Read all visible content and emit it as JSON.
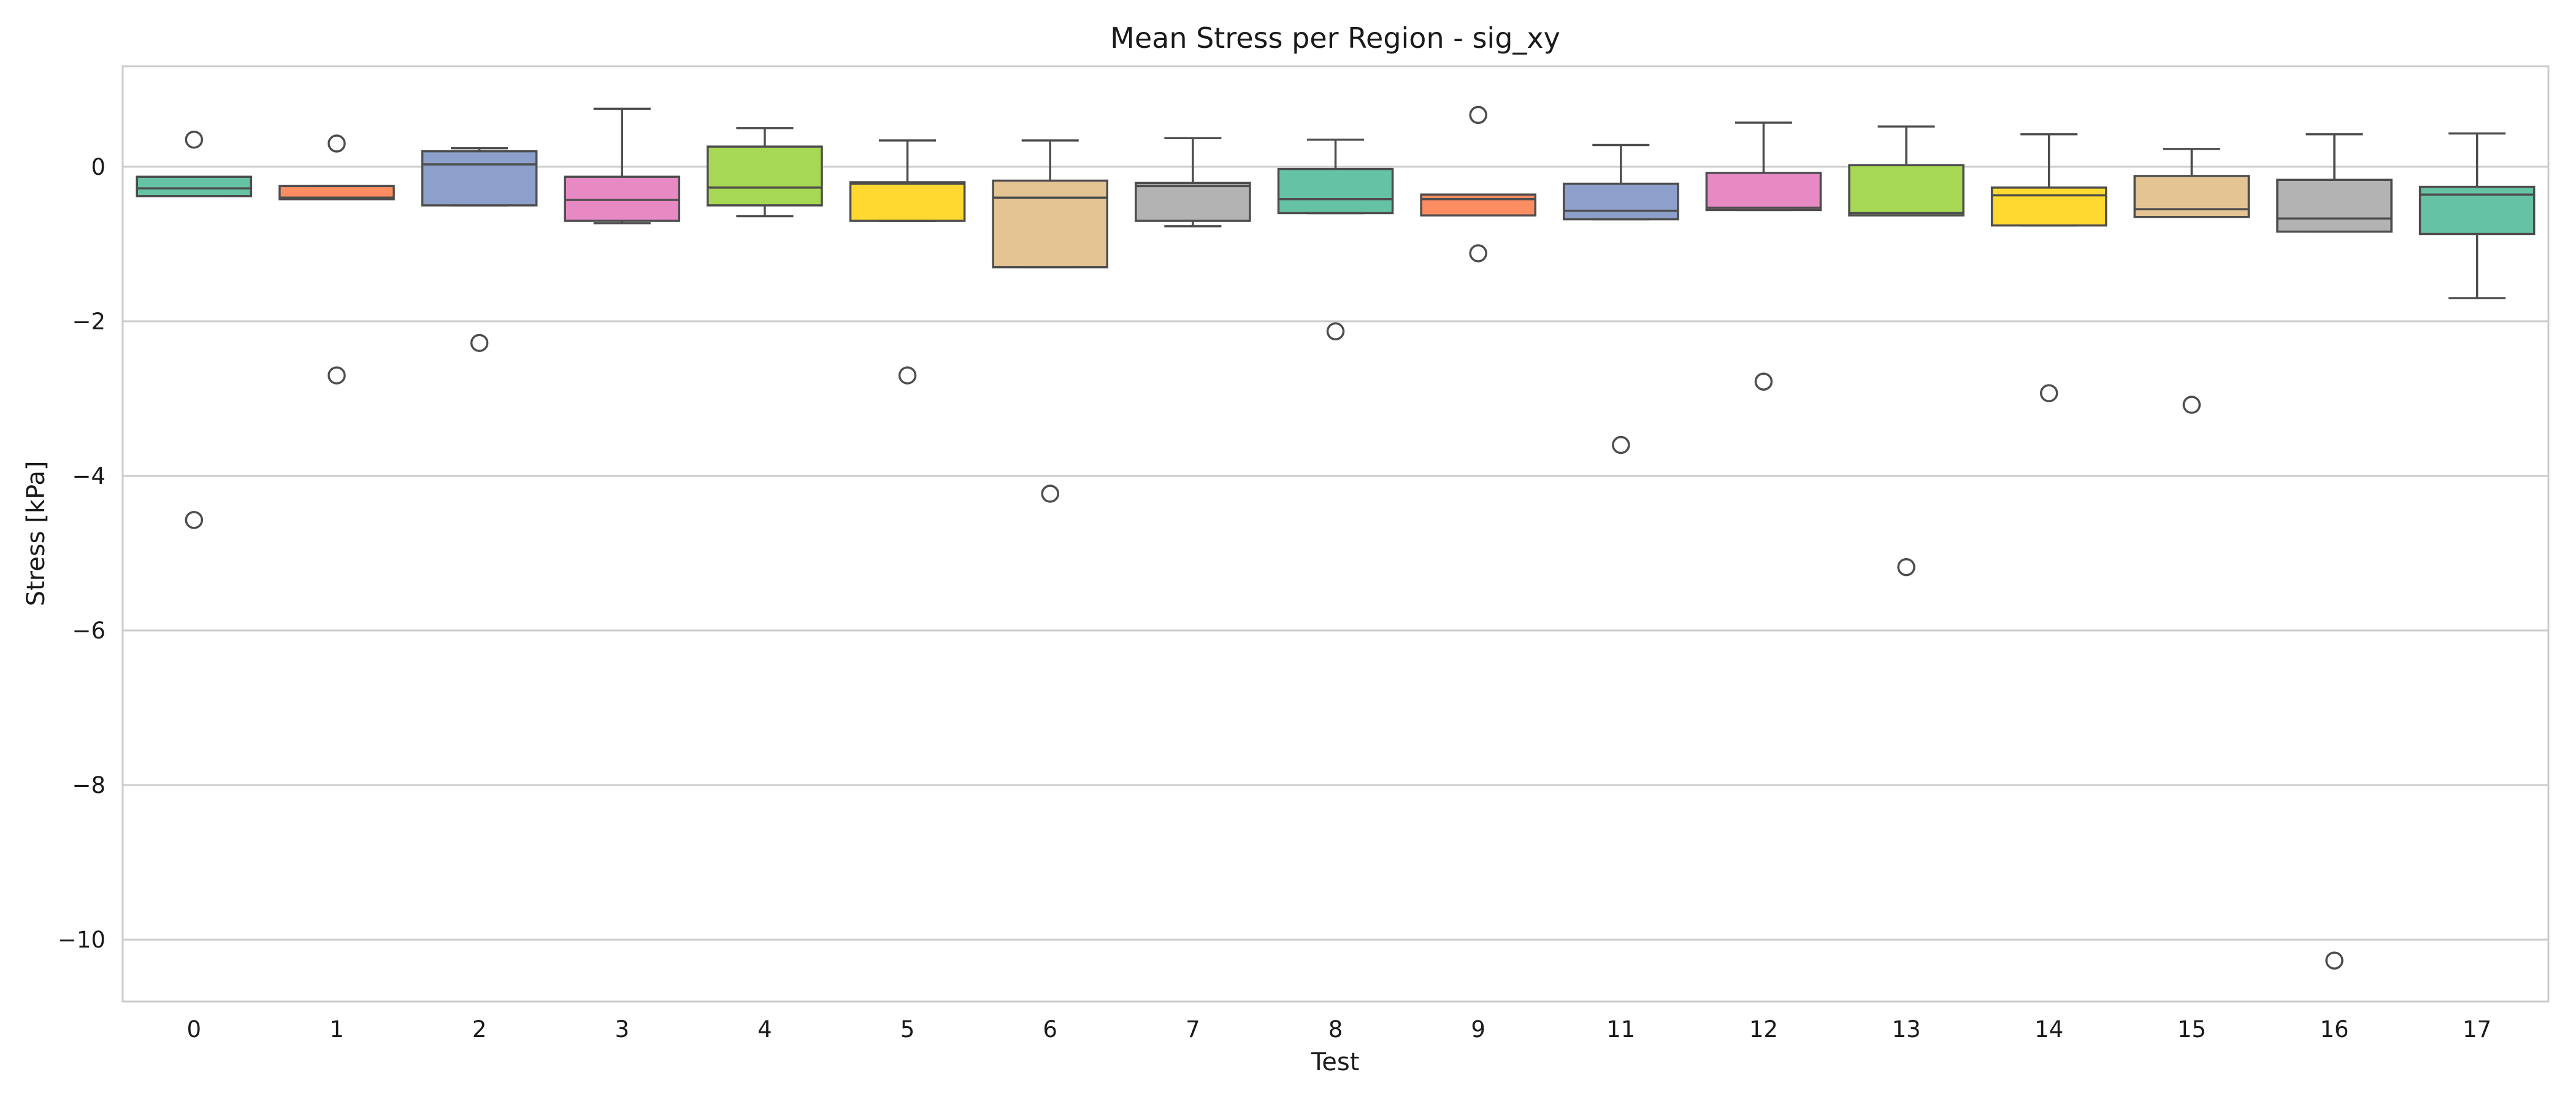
{
  "chart_data": {
    "type": "boxplot",
    "title": "Mean Stress per Region - sig_xy",
    "xlabel": "Test",
    "ylabel": "Stress [kPa]",
    "ylim": [
      -10.8,
      1.3
    ],
    "yticks": [
      0,
      -2,
      -4,
      -6,
      -8,
      -10
    ],
    "ytick_labels": [
      "0",
      "−2",
      "−4",
      "−6",
      "−8",
      "−10"
    ],
    "grid": "horizontal",
    "categories": [
      "0",
      "1",
      "2",
      "3",
      "4",
      "5",
      "6",
      "7",
      "8",
      "9",
      "11",
      "12",
      "13",
      "14",
      "15",
      "16",
      "17"
    ],
    "colors": [
      "#66c2a5",
      "#fc8d62",
      "#8da0cb",
      "#e78ac3",
      "#a6d854",
      "#ffd92f",
      "#e5c494",
      "#b3b3b3",
      "#66c2a5",
      "#fc8d62",
      "#8da0cb",
      "#e78ac3",
      "#a6d854",
      "#ffd92f",
      "#e5c494",
      "#b3b3b3",
      "#66c2a5"
    ],
    "boxes": [
      {
        "whislo": -0.38,
        "q1": -0.38,
        "med": -0.28,
        "q3": -0.13,
        "whishi": -0.13,
        "fliers": [
          0.35,
          -4.57
        ]
      },
      {
        "whislo": -0.42,
        "q1": -0.42,
        "med": -0.4,
        "q3": -0.25,
        "whishi": -0.25,
        "fliers": [
          0.3,
          -2.7
        ]
      },
      {
        "whislo": -0.5,
        "q1": -0.5,
        "med": 0.03,
        "q3": 0.2,
        "whishi": 0.24,
        "fliers": [
          -2.28
        ]
      },
      {
        "whislo": -0.73,
        "q1": -0.7,
        "med": -0.43,
        "q3": -0.13,
        "whishi": 0.75,
        "fliers": []
      },
      {
        "whislo": -0.64,
        "q1": -0.5,
        "med": -0.27,
        "q3": 0.26,
        "whishi": 0.5,
        "fliers": []
      },
      {
        "whislo": -0.7,
        "q1": -0.7,
        "med": -0.22,
        "q3": -0.2,
        "whishi": 0.34,
        "fliers": [
          -2.7
        ]
      },
      {
        "whislo": -1.3,
        "q1": -1.3,
        "med": -0.4,
        "q3": -0.18,
        "whishi": 0.34,
        "fliers": [
          -4.23
        ]
      },
      {
        "whislo": -0.77,
        "q1": -0.7,
        "med": -0.25,
        "q3": -0.21,
        "whishi": 0.37,
        "fliers": []
      },
      {
        "whislo": -0.6,
        "q1": -0.6,
        "med": -0.42,
        "q3": -0.03,
        "whishi": 0.35,
        "fliers": [
          -2.13
        ]
      },
      {
        "whislo": -0.63,
        "q1": -0.63,
        "med": -0.42,
        "q3": -0.36,
        "whishi": -0.36,
        "fliers": [
          0.67,
          -1.12
        ]
      },
      {
        "whislo": -0.68,
        "q1": -0.68,
        "med": -0.57,
        "q3": -0.22,
        "whishi": 0.28,
        "fliers": [
          -3.6
        ]
      },
      {
        "whislo": -0.56,
        "q1": -0.56,
        "med": -0.53,
        "q3": -0.08,
        "whishi": 0.57,
        "fliers": [
          -2.78
        ]
      },
      {
        "whislo": -0.63,
        "q1": -0.63,
        "med": -0.6,
        "q3": 0.02,
        "whishi": 0.52,
        "fliers": [
          -5.18
        ]
      },
      {
        "whislo": -0.76,
        "q1": -0.76,
        "med": -0.37,
        "q3": -0.27,
        "whishi": 0.42,
        "fliers": [
          -2.93
        ]
      },
      {
        "whislo": -0.65,
        "q1": -0.65,
        "med": -0.55,
        "q3": -0.12,
        "whishi": 0.23,
        "fliers": [
          -3.08
        ]
      },
      {
        "whislo": -0.84,
        "q1": -0.84,
        "med": -0.67,
        "q3": -0.17,
        "whishi": 0.42,
        "fliers": [
          -10.27
        ]
      },
      {
        "whislo": -1.7,
        "q1": -0.87,
        "med": -0.36,
        "q3": -0.26,
        "whishi": 0.43,
        "fliers": []
      }
    ]
  }
}
